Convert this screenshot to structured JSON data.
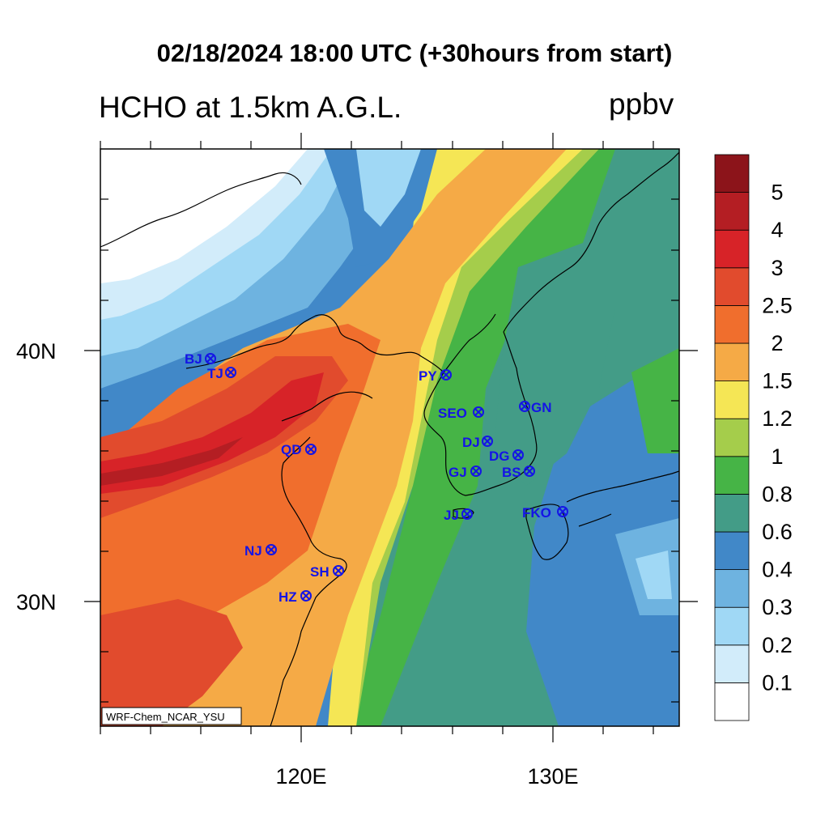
{
  "header": {
    "title": "02/18/2024 18:00 UTC (+30hours from start)",
    "left_title": "HCHO at 1.5km A.G.L.",
    "units": "ppbv"
  },
  "axes": {
    "lat_labels": [
      "40N",
      "30N"
    ],
    "lon_labels": [
      "120E",
      "130E"
    ]
  },
  "colorbar": {
    "levels": [
      "0.1",
      "0.2",
      "0.3",
      "0.4",
      "0.6",
      "0.8",
      "1",
      "1.2",
      "1.5",
      "2",
      "2.5",
      "3",
      "4",
      "5"
    ],
    "colors": [
      "#ffffff",
      "#d2ecfa",
      "#a0d8f5",
      "#6eb3e0",
      "#4188c8",
      "#439c87",
      "#46b446",
      "#a5cd4b",
      "#f5e655",
      "#f5aa46",
      "#f06e2d",
      "#e14b2d",
      "#d72328",
      "#b41e23",
      "#8c141a"
    ]
  },
  "stations": [
    {
      "code": "BJ"
    },
    {
      "code": "TJ"
    },
    {
      "code": "PY"
    },
    {
      "code": "QD"
    },
    {
      "code": "SEO"
    },
    {
      "code": "GN"
    },
    {
      "code": "DJ"
    },
    {
      "code": "DG"
    },
    {
      "code": "GJ"
    },
    {
      "code": "BS"
    },
    {
      "code": "JJ"
    },
    {
      "code": "FKO"
    },
    {
      "code": "NJ"
    },
    {
      "code": "SH"
    },
    {
      "code": "HZ"
    }
  ],
  "credit": "WRF-Chem_NCAR_YSU"
}
